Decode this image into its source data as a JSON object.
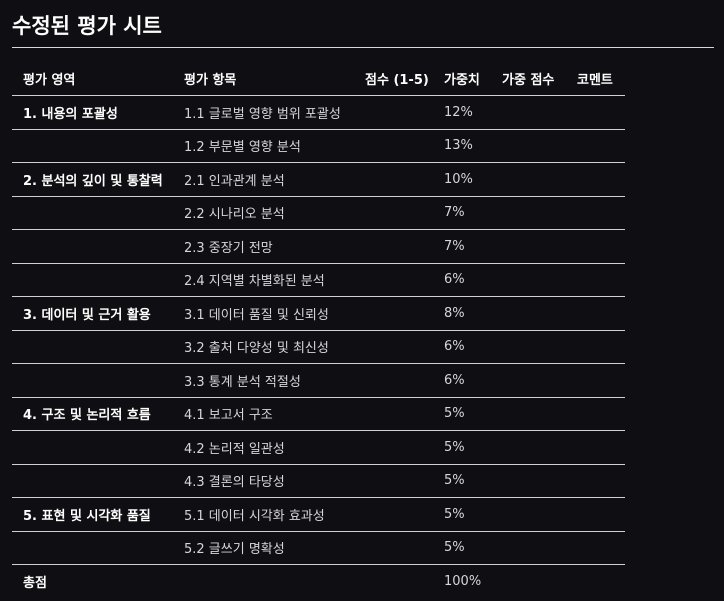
{
  "page": {
    "title": "수정된 평가 시트"
  },
  "table": {
    "headers": {
      "area": "평가 영역",
      "item": "평가 항목",
      "score": "점수 (1-5)",
      "weight": "가중치",
      "weighted_score": "가중 점수",
      "comment": "코멘트"
    },
    "rows": [
      {
        "area": "1. 내용의 포괄성",
        "item": "1.1 글로벌 영향 범위 포괄성",
        "score": "",
        "weight": "12%",
        "weighted_score": "",
        "comment": ""
      },
      {
        "area": "",
        "item": "1.2 부문별 영향 분석",
        "score": "",
        "weight": "13%",
        "weighted_score": "",
        "comment": ""
      },
      {
        "area": "2. 분석의 깊이 및 통찰력",
        "item": "2.1 인과관계 분석",
        "score": "",
        "weight": "10%",
        "weighted_score": "",
        "comment": ""
      },
      {
        "area": "",
        "item": "2.2 시나리오 분석",
        "score": "",
        "weight": "7%",
        "weighted_score": "",
        "comment": ""
      },
      {
        "area": "",
        "item": "2.3 중장기 전망",
        "score": "",
        "weight": "7%",
        "weighted_score": "",
        "comment": ""
      },
      {
        "area": "",
        "item": "2.4 지역별 차별화된 분석",
        "score": "",
        "weight": "6%",
        "weighted_score": "",
        "comment": ""
      },
      {
        "area": "3. 데이터 및 근거 활용",
        "item": "3.1 데이터 품질 및 신뢰성",
        "score": "",
        "weight": "8%",
        "weighted_score": "",
        "comment": ""
      },
      {
        "area": "",
        "item": "3.2 출처 다양성 및 최신성",
        "score": "",
        "weight": "6%",
        "weighted_score": "",
        "comment": ""
      },
      {
        "area": "",
        "item": "3.3 통계 분석 적절성",
        "score": "",
        "weight": "6%",
        "weighted_score": "",
        "comment": ""
      },
      {
        "area": "4. 구조 및 논리적 흐름",
        "item": "4.1 보고서 구조",
        "score": "",
        "weight": "5%",
        "weighted_score": "",
        "comment": ""
      },
      {
        "area": "",
        "item": "4.2 논리적 일관성",
        "score": "",
        "weight": "5%",
        "weighted_score": "",
        "comment": ""
      },
      {
        "area": "",
        "item": "4.3 결론의 타당성",
        "score": "",
        "weight": "5%",
        "weighted_score": "",
        "comment": ""
      },
      {
        "area": "5. 표현 및 시각화 품질",
        "item": "5.1 데이터 시각화 효과성",
        "score": "",
        "weight": "5%",
        "weighted_score": "",
        "comment": ""
      },
      {
        "area": "",
        "item": "5.2 글쓰기 명확성",
        "score": "",
        "weight": "5%",
        "weighted_score": "",
        "comment": ""
      }
    ],
    "total": {
      "label": "총점",
      "weight": "100%"
    }
  }
}
